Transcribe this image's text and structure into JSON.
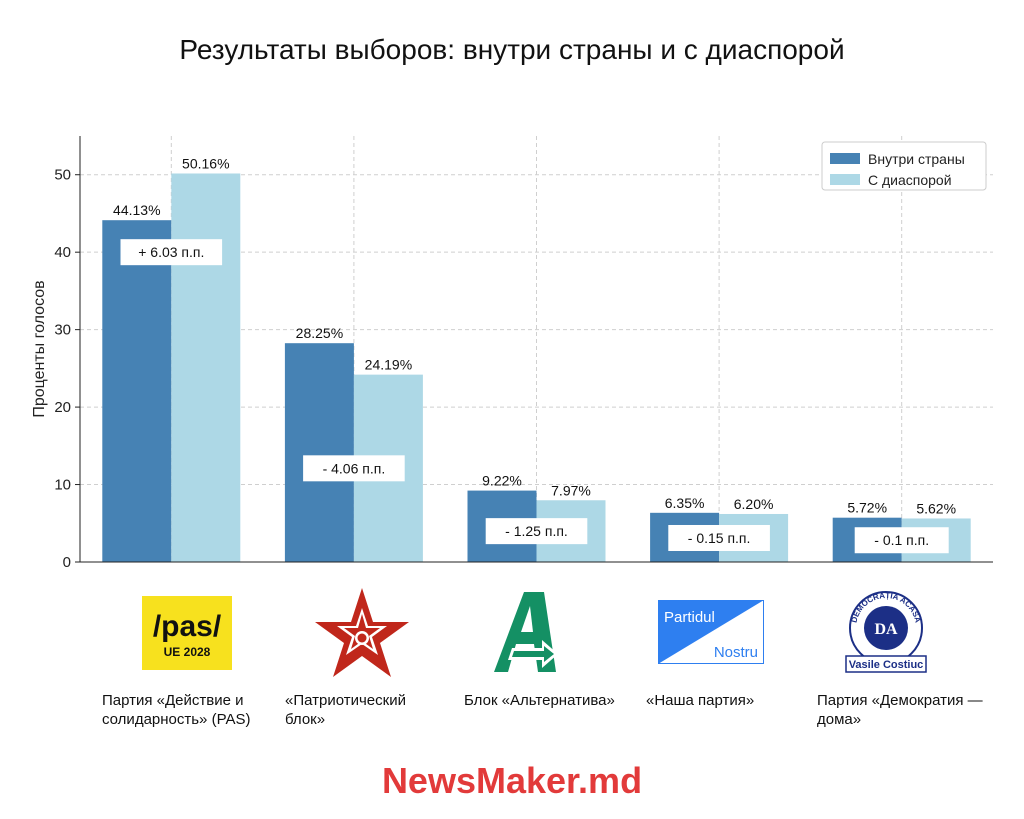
{
  "chart_data": {
    "type": "bar",
    "title": "Результаты выборов: внутри страны и с диаспорой",
    "ylabel": "Проценты голосов",
    "xlabel": "",
    "ylim": [
      0,
      55
    ],
    "yticks": [
      "0",
      "10",
      "20",
      "30",
      "40",
      "50"
    ],
    "grid": true,
    "legend_position": "top-right",
    "categories": [
      "Партия «Действие и солидарность» (PAS)",
      "«Патриотический блок»",
      "Блок «Альтернатива»",
      "«Наша партия»",
      "Партия «Демократия — дома»"
    ],
    "series": [
      {
        "name": "Внутри страны",
        "color": "#4682b4",
        "values": [
          44.13,
          28.25,
          9.22,
          6.35,
          5.72
        ],
        "labels": [
          "44.13%",
          "28.25%",
          "9.22%",
          "6.35%",
          "5.72%"
        ]
      },
      {
        "name": "С диаспорой",
        "color": "#add8e6",
        "values": [
          50.16,
          24.19,
          7.97,
          6.2,
          5.62
        ],
        "labels": [
          "50.16%",
          "24.19%",
          "7.97%",
          "6.20%",
          "5.62%"
        ]
      }
    ],
    "differences": [
      "+ 6.03 п.п.",
      "- 4.06 п.п.",
      "- 1.25 п.п.",
      "- 0.15 п.п.",
      "- 0.1 п.п."
    ]
  },
  "parties": [
    {
      "name_line1": "Партия «Действие и",
      "name_line2": "солидарность» (PAS)",
      "logo_icon": "pas-logo",
      "logo_text": "/pas/",
      "logo_sub": "UE 2028"
    },
    {
      "name_line1": "«Патриотический",
      "name_line2": "блок»",
      "logo_icon": "red-star-hammer-sickle-logo"
    },
    {
      "name_line1": "Блок «Альтернатива»",
      "name_line2": "",
      "logo_icon": "green-a-logo"
    },
    {
      "name_line1": "«Наша партия»",
      "name_line2": "",
      "logo_icon": "partidul-nostru-logo",
      "logo_text_top": "Partidul",
      "logo_text_bottom": "Nostru"
    },
    {
      "name_line1": "Партия «Демократия —",
      "name_line2": "дома»",
      "logo_icon": "democratia-acasa-logo",
      "logo_ring": "DEMOCRAȚIA ACASĂ",
      "logo_center": "DA",
      "logo_banner": "Vasile Costiuc"
    }
  ],
  "brand": "NewsMaker.md",
  "colors": {
    "brand": "#e23a3a",
    "pas_yellow": "#f7e11e",
    "alt_green": "#149064",
    "nostru_blue": "#2e7ff0",
    "star_red": "#c0271b",
    "da_navy": "#1c2f86"
  }
}
